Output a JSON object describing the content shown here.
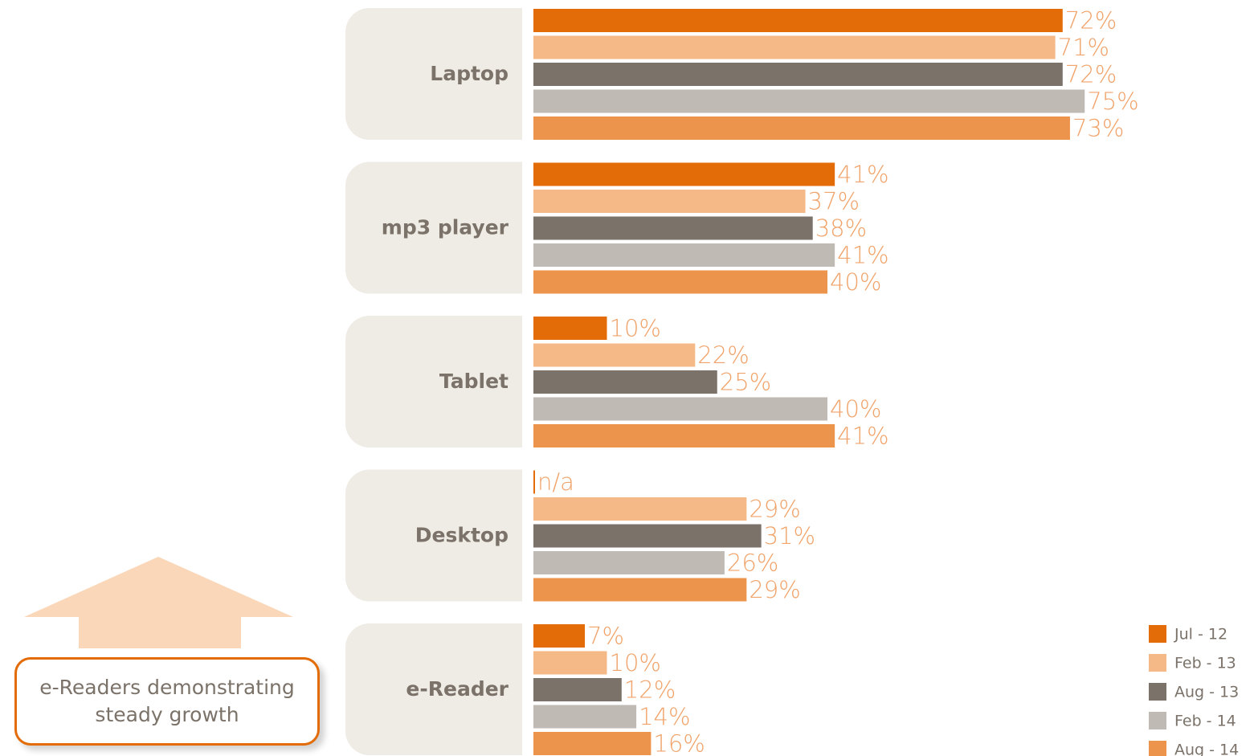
{
  "chart_data": {
    "type": "bar",
    "orientation": "horizontal",
    "categories": [
      "Laptop",
      "mp3 player",
      "Tablet",
      "Desktop",
      "e-Reader"
    ],
    "series": [
      {
        "name": "Jul - 12",
        "color": "#e36c09",
        "values": [
          72,
          41,
          10,
          null,
          7
        ],
        "value_labels": [
          "72%",
          "41%",
          "10%",
          "n/a",
          "7%"
        ]
      },
      {
        "name": "Feb - 13",
        "color": "#f4b987",
        "values": [
          71,
          37,
          22,
          29,
          10
        ],
        "value_labels": [
          "71%",
          "37%",
          "22%",
          "29%",
          "10%"
        ]
      },
      {
        "name": "Aug - 13",
        "color": "#7b7269",
        "values": [
          72,
          38,
          25,
          31,
          12
        ],
        "value_labels": [
          "72%",
          "38%",
          "25%",
          "31%",
          "12%"
        ]
      },
      {
        "name": "Feb - 14",
        "color": "#bfbab4",
        "values": [
          75,
          41,
          40,
          26,
          14
        ],
        "value_labels": [
          "75%",
          "41%",
          "40%",
          "26%",
          "14%"
        ]
      },
      {
        "name": "Aug - 14",
        "color": "#ed944c",
        "values": [
          73,
          40,
          41,
          29,
          16
        ],
        "value_labels": [
          "73%",
          "40%",
          "41%",
          "29%",
          "16%"
        ]
      }
    ],
    "annotation": "e-Readers demonstrating steady growth",
    "legend": "bottom-right"
  }
}
